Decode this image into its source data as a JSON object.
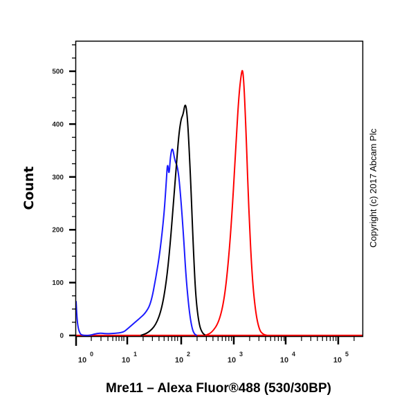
{
  "chart_data": {
    "type": "line",
    "subtype": "flow-cytometry-histogram",
    "title": "",
    "xlabel": "Mre11 – Alexa Fluor®488 (530/30BP)",
    "ylabel": "Count",
    "x_scale": "log (biexponential)",
    "x_ticks": [
      {
        "base": "10",
        "exp": "0"
      },
      {
        "base": "10",
        "exp": "1"
      },
      {
        "base": "10",
        "exp": "2"
      },
      {
        "base": "10",
        "exp": "3"
      },
      {
        "base": "10",
        "exp": "4"
      },
      {
        "base": "10",
        "exp": "5"
      }
    ],
    "y_ticks": [
      "0",
      "100",
      "200",
      "300",
      "400",
      "500"
    ],
    "ylim": [
      0,
      500
    ],
    "grid": false,
    "legend": null,
    "annotation": "Copyright (c) 2017 Abcam Plc",
    "series": [
      {
        "name": "blue",
        "color": "#1a1aff",
        "x": [
          0.6,
          0.65,
          0.75,
          0.9,
          1.2,
          2.0,
          3.0,
          5.0,
          8.0,
          10,
          13,
          17,
          22,
          28,
          35,
          42,
          50,
          55,
          58,
          62,
          66,
          72,
          80,
          90,
          100,
          115,
          130,
          150,
          170,
          190,
          210
        ],
        "values": [
          65,
          20,
          2,
          0,
          0,
          5,
          3,
          4,
          6,
          12,
          22,
          32,
          42,
          60,
          110,
          160,
          230,
          290,
          330,
          300,
          340,
          358,
          330,
          320,
          280,
          200,
          110,
          45,
          12,
          2,
          0
        ]
      },
      {
        "name": "black",
        "color": "#000000",
        "x": [
          18,
          25,
          35,
          45,
          55,
          65,
          75,
          85,
          95,
          105,
          115,
          125,
          135,
          145,
          160,
          180,
          200,
          230,
          270,
          320
        ],
        "values": [
          0,
          5,
          20,
          50,
          100,
          170,
          250,
          320,
          380,
          410,
          418,
          440,
          425,
          380,
          290,
          160,
          70,
          20,
          3,
          0
        ]
      },
      {
        "name": "red",
        "color": "#ff0000",
        "x": [
          300,
          400,
          550,
          700,
          850,
          1000,
          1150,
          1300,
          1450,
          1550,
          1650,
          1800,
          2000,
          2300,
          2700,
          3200,
          3800,
          4500
        ],
        "values": [
          0,
          5,
          25,
          70,
          150,
          250,
          360,
          450,
          495,
          505,
          470,
          380,
          250,
          120,
          45,
          10,
          2,
          0
        ]
      }
    ]
  },
  "axes": {
    "ylabel": "Count",
    "xlabel": "Mre11 – Alexa Fluor®488 (530/30BP)",
    "copyright": "Copyright (c) 2017 Abcam Plc"
  }
}
